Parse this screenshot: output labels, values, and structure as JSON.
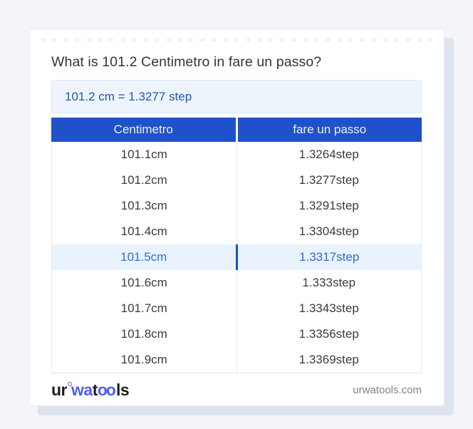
{
  "page": {
    "title": "What is 101.2 Centimetro in fare un passo?",
    "result_text": "101.2 cm = 1.3277 step"
  },
  "table": {
    "headers": [
      "Centimetro",
      "fare un passo"
    ],
    "rows": [
      {
        "centimetro": "101.1cm",
        "step": "1.3264step",
        "highlighted": false
      },
      {
        "centimetro": "101.2cm",
        "step": "1.3277step",
        "highlighted": false
      },
      {
        "centimetro": "101.3cm",
        "step": "1.3291step",
        "highlighted": false
      },
      {
        "centimetro": "101.4cm",
        "step": "1.3304step",
        "highlighted": false
      },
      {
        "centimetro": "101.5cm",
        "step": "1.3317step",
        "highlighted": true
      },
      {
        "centimetro": "101.6cm",
        "step": "1.333step",
        "highlighted": false
      },
      {
        "centimetro": "101.7cm",
        "step": "1.3343step",
        "highlighted": false
      },
      {
        "centimetro": "101.8cm",
        "step": "1.3356step",
        "highlighted": false
      },
      {
        "centimetro": "101.9cm",
        "step": "1.3369step",
        "highlighted": false
      }
    ]
  },
  "footer": {
    "logo_part1": "ur",
    "logo_part2": "wa",
    "logo_part3": "t",
    "logo_part4": "oo",
    "logo_part5": "ls",
    "domain": "urwatools.com"
  },
  "colors": {
    "page_background": "#f4f5f9",
    "table_header_bg": "#1f51cb",
    "result_box_bg": "#edf4fc",
    "result_text": "#2155bd",
    "highlight_row_bg": "#e9f3fe",
    "highlight_row_text": "#2e6be0",
    "logo_accent": "#4f5ff2",
    "card_shadow": "#dee3f0"
  }
}
